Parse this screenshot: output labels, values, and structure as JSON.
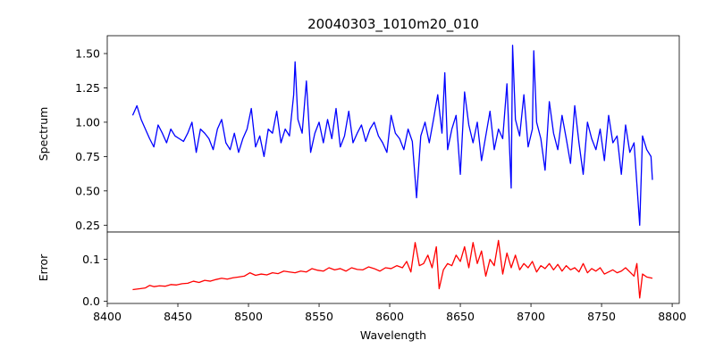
{
  "chart_data": [
    {
      "type": "line",
      "title": "20040303_1010m20_010",
      "xlabel": "",
      "ylabel": "Spectrum",
      "xlim": [
        8400,
        8805
      ],
      "ylim": [
        0.2,
        1.63
      ],
      "xticks": [],
      "yticks": [
        0.25,
        0.5,
        0.75,
        1.0,
        1.25,
        1.5
      ],
      "ytick_labels": [
        "0.25",
        "0.50",
        "0.75",
        "1.00",
        "1.25",
        "1.50"
      ],
      "grid": false,
      "series": [
        {
          "name": "",
          "color": "#0000ff",
          "x": [
            8418,
            8421,
            8424,
            8427,
            8430,
            8433,
            8436,
            8439,
            8442,
            8445,
            8448,
            8451,
            8454,
            8457,
            8460,
            8463,
            8466,
            8469,
            8472,
            8475,
            8478,
            8481,
            8484,
            8487,
            8490,
            8493,
            8496,
            8499,
            8502,
            8505,
            8508,
            8511,
            8514,
            8517,
            8520,
            8523,
            8526,
            8529,
            8532,
            8533,
            8535,
            8538,
            8541,
            8544,
            8547,
            8550,
            8553,
            8556,
            8559,
            8562,
            8565,
            8568,
            8571,
            8574,
            8577,
            8580,
            8583,
            8586,
            8589,
            8592,
            8595,
            8598,
            8601,
            8604,
            8607,
            8610,
            8613,
            8616,
            8619,
            8622,
            8625,
            8628,
            8631,
            8634,
            8637,
            8639,
            8641,
            8644,
            8647,
            8650,
            8653,
            8656,
            8659,
            8662,
            8665,
            8668,
            8671,
            8674,
            8677,
            8680,
            8683,
            8686,
            8687,
            8689,
            8692,
            8695,
            8698,
            8701,
            8702,
            8704,
            8707,
            8710,
            8713,
            8716,
            8719,
            8722,
            8725,
            8728,
            8731,
            8734,
            8737,
            8740,
            8743,
            8746,
            8749,
            8752,
            8755,
            8758,
            8761,
            8764,
            8767,
            8770,
            8773,
            8775,
            8777,
            8779,
            8782,
            8785,
            8786
          ],
          "values": [
            1.05,
            1.12,
            1.02,
            0.95,
            0.88,
            0.82,
            0.98,
            0.92,
            0.85,
            0.95,
            0.9,
            0.88,
            0.86,
            0.92,
            1.0,
            0.78,
            0.95,
            0.92,
            0.88,
            0.8,
            0.95,
            1.02,
            0.85,
            0.8,
            0.92,
            0.78,
            0.88,
            0.95,
            1.1,
            0.82,
            0.9,
            0.75,
            0.95,
            0.92,
            1.08,
            0.85,
            0.95,
            0.9,
            1.2,
            1.44,
            1.02,
            0.92,
            1.3,
            0.78,
            0.92,
            1.0,
            0.85,
            1.02,
            0.88,
            1.1,
            0.82,
            0.9,
            1.08,
            0.85,
            0.92,
            0.98,
            0.86,
            0.95,
            1.0,
            0.9,
            0.85,
            0.78,
            1.05,
            0.92,
            0.88,
            0.8,
            0.95,
            0.86,
            0.45,
            0.9,
            1.0,
            0.85,
            1.02,
            1.2,
            0.92,
            1.36,
            0.8,
            0.95,
            1.05,
            0.62,
            1.22,
            0.98,
            0.85,
            1.0,
            0.72,
            0.9,
            1.08,
            0.8,
            0.95,
            0.88,
            1.28,
            0.52,
            1.56,
            1.02,
            0.9,
            1.2,
            0.82,
            0.95,
            1.52,
            1.0,
            0.88,
            0.65,
            1.15,
            0.92,
            0.8,
            1.05,
            0.88,
            0.7,
            1.12,
            0.85,
            0.62,
            1.0,
            0.88,
            0.8,
            0.95,
            0.72,
            1.05,
            0.85,
            0.9,
            0.62,
            0.98,
            0.78,
            0.85,
            0.55,
            0.25,
            0.9,
            0.8,
            0.75,
            0.58
          ]
        }
      ]
    },
    {
      "type": "line",
      "title": "",
      "xlabel": "Wavelength",
      "ylabel": "Error",
      "xlim": [
        8400,
        8805
      ],
      "ylim": [
        -0.005,
        0.165
      ],
      "xticks": [
        8400,
        8450,
        8500,
        8550,
        8600,
        8650,
        8700,
        8750,
        8800
      ],
      "xtick_labels": [
        "8400",
        "8450",
        "8500",
        "8550",
        "8600",
        "8650",
        "8700",
        "8750",
        "8800"
      ],
      "yticks": [
        0.0,
        0.1
      ],
      "ytick_labels": [
        "0.0",
        "0.1"
      ],
      "grid": false,
      "series": [
        {
          "name": "",
          "color": "#ff0000",
          "x": [
            8418,
            8423,
            8427,
            8430,
            8433,
            8437,
            8441,
            8445,
            8449,
            8453,
            8457,
            8461,
            8465,
            8469,
            8473,
            8477,
            8481,
            8485,
            8489,
            8493,
            8497,
            8501,
            8505,
            8509,
            8513,
            8517,
            8521,
            8525,
            8529,
            8533,
            8537,
            8541,
            8545,
            8549,
            8553,
            8557,
            8561,
            8565,
            8569,
            8573,
            8577,
            8581,
            8585,
            8589,
            8593,
            8597,
            8601,
            8605,
            8609,
            8612,
            8615,
            8618,
            8621,
            8624,
            8627,
            8630,
            8633,
            8635,
            8638,
            8641,
            8644,
            8647,
            8650,
            8653,
            8656,
            8659,
            8662,
            8665,
            8668,
            8671,
            8674,
            8677,
            8680,
            8683,
            8686,
            8689,
            8692,
            8695,
            8698,
            8701,
            8704,
            8707,
            8710,
            8713,
            8716,
            8719,
            8722,
            8725,
            8728,
            8731,
            8734,
            8737,
            8740,
            8743,
            8746,
            8749,
            8752,
            8755,
            8758,
            8761,
            8764,
            8767,
            8770,
            8773,
            8775,
            8777,
            8779,
            8782,
            8786
          ],
          "values": [
            0.028,
            0.03,
            0.032,
            0.038,
            0.035,
            0.037,
            0.036,
            0.04,
            0.039,
            0.042,
            0.043,
            0.048,
            0.045,
            0.05,
            0.048,
            0.052,
            0.055,
            0.053,
            0.056,
            0.058,
            0.06,
            0.068,
            0.062,
            0.065,
            0.063,
            0.068,
            0.066,
            0.072,
            0.07,
            0.068,
            0.072,
            0.07,
            0.078,
            0.074,
            0.072,
            0.08,
            0.075,
            0.078,
            0.072,
            0.08,
            0.076,
            0.075,
            0.082,
            0.078,
            0.072,
            0.08,
            0.078,
            0.085,
            0.08,
            0.095,
            0.07,
            0.14,
            0.085,
            0.09,
            0.11,
            0.08,
            0.13,
            0.03,
            0.075,
            0.09,
            0.085,
            0.11,
            0.095,
            0.13,
            0.08,
            0.14,
            0.09,
            0.12,
            0.06,
            0.1,
            0.085,
            0.145,
            0.065,
            0.115,
            0.08,
            0.11,
            0.075,
            0.09,
            0.08,
            0.095,
            0.07,
            0.085,
            0.078,
            0.09,
            0.075,
            0.088,
            0.072,
            0.085,
            0.075,
            0.08,
            0.07,
            0.09,
            0.068,
            0.078,
            0.072,
            0.08,
            0.065,
            0.07,
            0.075,
            0.068,
            0.072,
            0.08,
            0.07,
            0.06,
            0.09,
            0.008,
            0.065,
            0.058,
            0.055
          ]
        }
      ]
    }
  ]
}
